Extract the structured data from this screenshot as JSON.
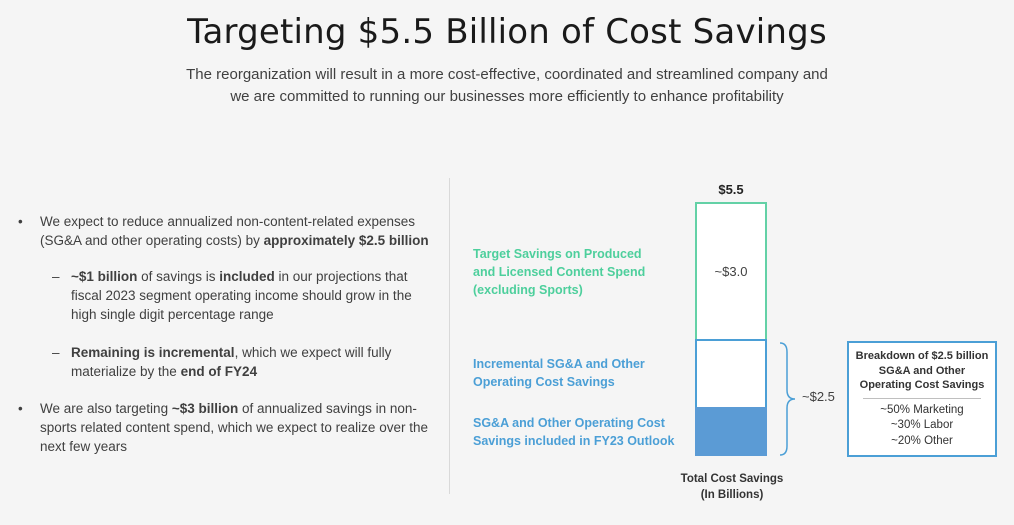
{
  "title": "Targeting $5.5 Billion of Cost Savings",
  "subtitle_line1": "The reorganization will result in a more cost-effective, coordinated and streamlined company and",
  "subtitle_line2": "we are committed to running our businesses more efficiently to enhance profitability",
  "bullets": {
    "b1": {
      "pre": "We expect to reduce annualized non-content-related expenses (SG&A and other operating costs) by ",
      "bold": "approximately $2.5 billion"
    },
    "s1": {
      "bold1": "~$1 billion",
      "mid": " of savings is ",
      "bold2": "included",
      "post": " in our projections that fiscal 2023 segment operating income should grow in the high single digit percentage range"
    },
    "s2": {
      "bold1": "Remaining is incremental",
      "mid": ", which we expect will fully materialize by the ",
      "bold2": "end of FY24"
    },
    "b2": {
      "pre": "We are also targeting ",
      "bold": "~$3 billion",
      "post": " of annualized savings in non-sports related content spend, which we expect to realize over the next few years"
    }
  },
  "chart_data": {
    "type": "bar",
    "stacked": true,
    "total_label": "$5.5",
    "x_label_line1": "Total Cost Savings",
    "x_label_line2": "(In Billions)",
    "segments": [
      {
        "name": "Target Savings on Produced and Licensed Content Spend (excluding Sports)",
        "value": 3.0,
        "label": "~$3.0",
        "color": "#63d1a6"
      },
      {
        "name": "Incremental SG&A and Other Operating Cost Savings",
        "value": 1.5,
        "color": "#4b9fd6"
      },
      {
        "name": "SG&A and Other Operating Cost Savings included in FY23 Outlook",
        "value": 1.0,
        "color": "#5b9bd5"
      }
    ],
    "brace_label": "~$2.5"
  },
  "legend": {
    "green_line1": "Target Savings on Produced",
    "green_line2": "and Licensed Content Spend",
    "green_line3": "(excluding Sports)",
    "blue1_line1": "Incremental SG&A and Other",
    "blue1_line2": "Operating Cost Savings",
    "blue2_line1": "SG&A and Other Operating Cost",
    "blue2_line2": "Savings included in FY23 Outlook"
  },
  "breakdown": {
    "head1": "Breakdown of $2.5 billion",
    "head2": "SG&A and Other",
    "head3": "Operating Cost Savings",
    "items": [
      "~50% Marketing",
      "~30% Labor",
      "~20% Other"
    ]
  }
}
